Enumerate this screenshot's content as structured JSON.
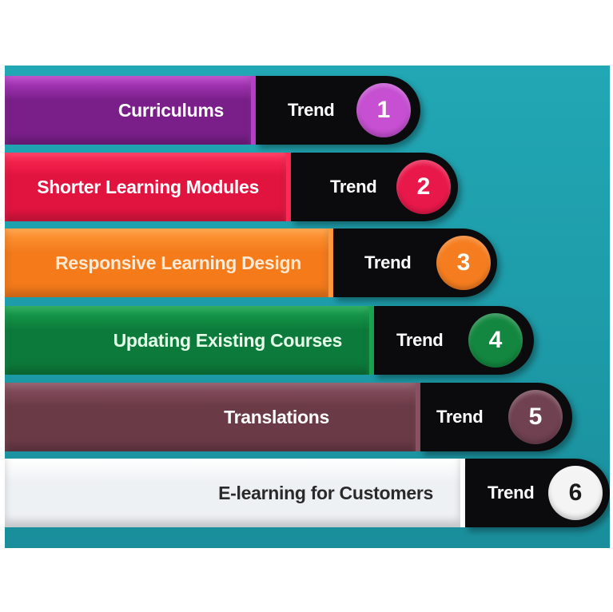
{
  "trends": [
    {
      "label": "Curriculums",
      "tag": "Trend",
      "number": "1",
      "bar_color": "#7a1f8a",
      "accent_color": "#b83fc9",
      "circle_color": "#c64fd2",
      "text_color": "#ffffff",
      "num_color": "#ffffff"
    },
    {
      "label": "Shorter Learning Modules",
      "tag": "Trend",
      "number": "2",
      "bar_color": "#e0143f",
      "accent_color": "#ff2a55",
      "circle_color": "#e8184a",
      "text_color": "#ffffff",
      "num_color": "#ffffff"
    },
    {
      "label": "Responsive Learning Design",
      "tag": "Trend",
      "number": "3",
      "bar_color": "#f47a1a",
      "accent_color": "#ff9a3a",
      "circle_color": "#f57d1f",
      "text_color": "#ffe9d2",
      "num_color": "#ffffff"
    },
    {
      "label": "Updating Existing Courses",
      "tag": "Trend",
      "number": "4",
      "bar_color": "#0c7a3a",
      "accent_color": "#19a54f",
      "circle_color": "#13873f",
      "text_color": "#e6ffe9",
      "num_color": "#ffffff"
    },
    {
      "label": "Translations",
      "tag": "Trend",
      "number": "5",
      "bar_color": "#6b3a47",
      "accent_color": "#8a5262",
      "circle_color": "#704150",
      "text_color": "#ffffff",
      "num_color": "#ffffff"
    },
    {
      "label": "E-learning for Customers",
      "tag": "Trend",
      "number": "6",
      "bar_color": "#eef1f4",
      "accent_color": "#ffffff",
      "circle_color": "#f4f4f4",
      "text_color": "#2a2a2a",
      "num_color": "#1a1a1a"
    }
  ]
}
